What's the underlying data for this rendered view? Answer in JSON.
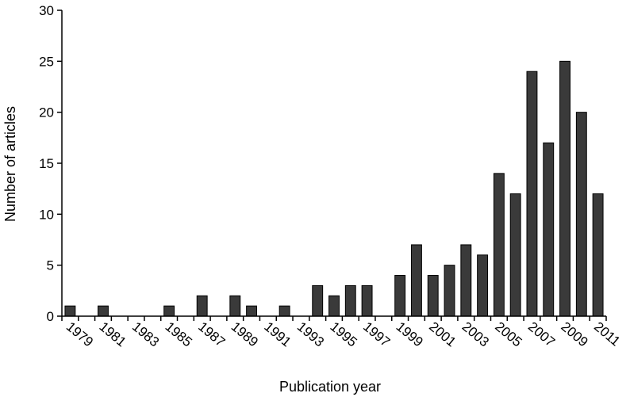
{
  "chart_data": {
    "type": "bar",
    "title": "",
    "xlabel": "Publication year",
    "ylabel": "Number of articles",
    "ylim": [
      0,
      30
    ],
    "yticks": [
      "0",
      "5",
      "10",
      "15",
      "20",
      "25",
      "30"
    ],
    "xtick_labels": [
      "1979",
      "1981",
      "1983",
      "1985",
      "1987",
      "1989",
      "1991",
      "1993",
      "1995",
      "1997",
      "1999",
      "2001",
      "2003",
      "2005",
      "2007",
      "2009",
      "2011"
    ],
    "grid": false,
    "bar_color": "#3a3a3a",
    "categories": [
      "1979",
      "1980",
      "1981",
      "1982",
      "1983",
      "1984",
      "1985",
      "1986",
      "1987",
      "1988",
      "1989",
      "1990",
      "1991",
      "1992",
      "1993",
      "1994",
      "1995",
      "1996",
      "1997",
      "1998",
      "1999",
      "2000",
      "2001",
      "2002",
      "2003",
      "2004",
      "2005",
      "2006",
      "2007",
      "2008",
      "2009",
      "2010",
      "2011"
    ],
    "values": [
      1,
      0,
      1,
      0,
      0,
      0,
      1,
      0,
      2,
      0,
      2,
      1,
      0,
      1,
      0,
      3,
      2,
      3,
      3,
      0,
      4,
      7,
      4,
      5,
      7,
      6,
      14,
      12,
      24,
      17,
      25,
      20,
      12
    ]
  }
}
